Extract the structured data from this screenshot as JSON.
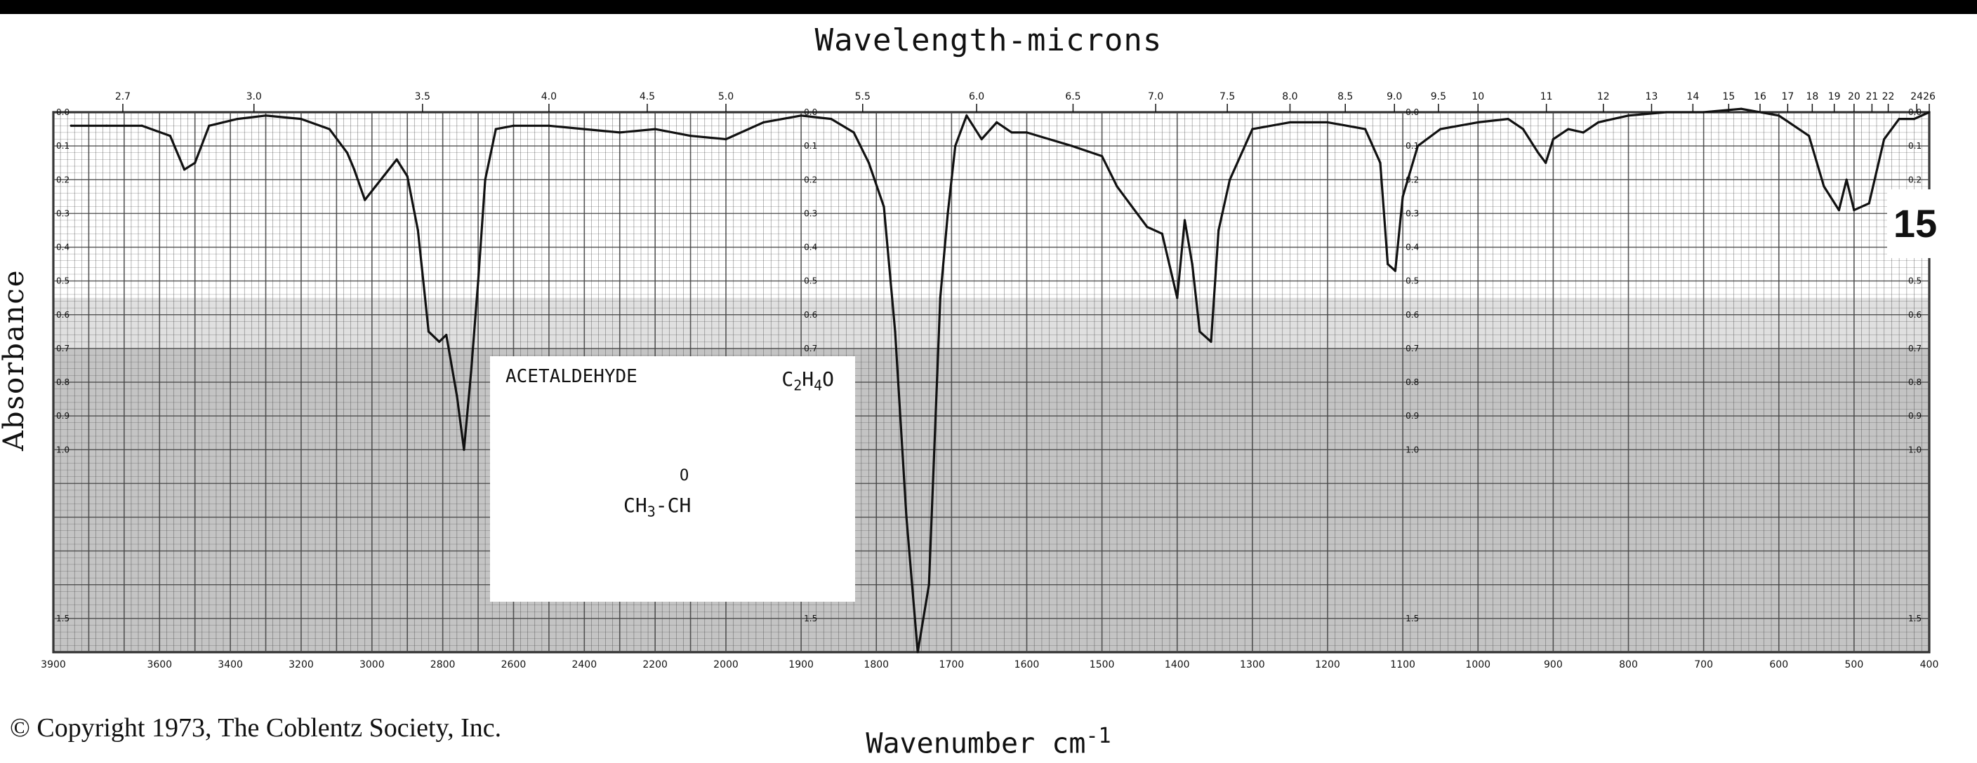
{
  "top_title": "Wavelength-microns",
  "y_label": "Absorbance",
  "bottom_title": "Wavenumber cm",
  "bottom_title_exponent": "-1",
  "copyright": "© Copyright 1973, The Coblentz Society, Inc.",
  "spectrum_number": "15",
  "compound": {
    "name": "ACETALDEHYDE",
    "formula": "C2H4O",
    "formula_parts": [
      "C",
      "2",
      "H",
      "4",
      "O"
    ],
    "structure_parts": [
      "CH",
      "3",
      "-CH"
    ],
    "structure_oxygen": "O"
  },
  "colors": {
    "ink": "#111111",
    "grid": "#444444",
    "dark_grid": "#222222",
    "paper": "#ffffff"
  },
  "chart_data": {
    "type": "line",
    "title": "",
    "xlabel": "Wavenumber cm-1",
    "ylabel": "Absorbance",
    "x_top_label": "Wavelength-microns",
    "xlim": [
      3900,
      400
    ],
    "ylim": [
      0,
      1.6
    ],
    "grid": true,
    "x_ticks": [
      3900,
      3600,
      3400,
      3200,
      3000,
      2800,
      2600,
      2400,
      2200,
      2000,
      1900,
      1800,
      1700,
      1600,
      1500,
      1400,
      1300,
      1200,
      1100,
      1000,
      900,
      800,
      700,
      600,
      500,
      400
    ],
    "x_tick_labels": [
      "3900",
      "3600",
      "3400",
      "3200",
      "3000",
      "2800",
      "2600",
      "2400",
      "2200",
      "2000",
      "1900",
      "1800",
      "1700",
      "1600",
      "1500",
      "1400",
      "1300",
      "1200",
      "1100",
      "1000",
      "900",
      "800",
      "700",
      "600",
      "500",
      "400"
    ],
    "top_ticks": [
      2.7,
      3.0,
      3.5,
      4.0,
      4.5,
      5.0,
      5.5,
      6.0,
      6.5,
      7.0,
      7.5,
      8.0,
      8.5,
      9.0,
      9.5,
      10,
      11,
      12,
      13,
      14,
      15,
      16,
      17,
      18,
      19,
      20,
      21,
      22,
      24,
      26
    ],
    "top_tick_labels": [
      "2.7",
      "3.0",
      "3.5",
      "4.0",
      "4.5",
      "5.0",
      "5.5",
      "6.0",
      "6.5",
      "7.0",
      "7.5",
      "8.0",
      "8.5",
      "9.0",
      "9.5",
      "10",
      "11",
      "12",
      "13",
      "14",
      "15",
      "16",
      "17",
      "18",
      "19",
      "20",
      "21",
      "22",
      "24",
      "26"
    ],
    "y_ticks": [
      0.0,
      0.1,
      0.2,
      0.3,
      0.4,
      0.5,
      0.6,
      0.7,
      0.8,
      0.9,
      1.0,
      1.5
    ],
    "y_tick_labels": [
      "0.0",
      "0.1",
      "0.2",
      "0.3",
      "0.4",
      "0.5",
      "0.6",
      "0.7",
      "0.8",
      "0.9",
      "1.0",
      "1.5"
    ],
    "series": [
      {
        "values": [
          [
            3850,
            0.04
          ],
          [
            3750,
            0.04
          ],
          [
            3650,
            0.04
          ],
          [
            3570,
            0.07
          ],
          [
            3530,
            0.17
          ],
          [
            3500,
            0.15
          ],
          [
            3460,
            0.04
          ],
          [
            3380,
            0.02
          ],
          [
            3300,
            0.01
          ],
          [
            3200,
            0.02
          ],
          [
            3120,
            0.05
          ],
          [
            3070,
            0.12
          ],
          [
            3050,
            0.17
          ],
          [
            3020,
            0.26
          ],
          [
            2990,
            0.22
          ],
          [
            2960,
            0.18
          ],
          [
            2930,
            0.14
          ],
          [
            2900,
            0.19
          ],
          [
            2870,
            0.35
          ],
          [
            2840,
            0.65
          ],
          [
            2810,
            0.68
          ],
          [
            2790,
            0.66
          ],
          [
            2760,
            0.84
          ],
          [
            2740,
            1.0
          ],
          [
            2720,
            0.77
          ],
          [
            2700,
            0.5
          ],
          [
            2680,
            0.2
          ],
          [
            2650,
            0.05
          ],
          [
            2600,
            0.04
          ],
          [
            2500,
            0.04
          ],
          [
            2400,
            0.05
          ],
          [
            2300,
            0.06
          ],
          [
            2200,
            0.05
          ],
          [
            2100,
            0.07
          ],
          [
            2000,
            0.08
          ],
          [
            1950,
            0.03
          ],
          [
            1900,
            0.01
          ],
          [
            1860,
            0.02
          ],
          [
            1830,
            0.06
          ],
          [
            1810,
            0.15
          ],
          [
            1790,
            0.28
          ],
          [
            1775,
            0.65
          ],
          [
            1760,
            1.2
          ],
          [
            1745,
            1.6
          ],
          [
            1730,
            1.4
          ],
          [
            1715,
            0.55
          ],
          [
            1705,
            0.3
          ],
          [
            1695,
            0.1
          ],
          [
            1680,
            0.01
          ],
          [
            1660,
            0.08
          ],
          [
            1640,
            0.03
          ],
          [
            1620,
            0.06
          ],
          [
            1600,
            0.06
          ],
          [
            1570,
            0.08
          ],
          [
            1540,
            0.1
          ],
          [
            1500,
            0.13
          ],
          [
            1480,
            0.22
          ],
          [
            1460,
            0.28
          ],
          [
            1440,
            0.34
          ],
          [
            1420,
            0.36
          ],
          [
            1400,
            0.55
          ],
          [
            1390,
            0.32
          ],
          [
            1380,
            0.45
          ],
          [
            1370,
            0.65
          ],
          [
            1355,
            0.68
          ],
          [
            1345,
            0.35
          ],
          [
            1330,
            0.2
          ],
          [
            1300,
            0.05
          ],
          [
            1250,
            0.03
          ],
          [
            1200,
            0.03
          ],
          [
            1150,
            0.05
          ],
          [
            1130,
            0.15
          ],
          [
            1120,
            0.45
          ],
          [
            1110,
            0.47
          ],
          [
            1100,
            0.25
          ],
          [
            1080,
            0.1
          ],
          [
            1050,
            0.05
          ],
          [
            1000,
            0.03
          ],
          [
            960,
            0.02
          ],
          [
            940,
            0.05
          ],
          [
            920,
            0.12
          ],
          [
            910,
            0.15
          ],
          [
            900,
            0.08
          ],
          [
            880,
            0.05
          ],
          [
            860,
            0.06
          ],
          [
            840,
            0.03
          ],
          [
            800,
            0.01
          ],
          [
            750,
            0.0
          ],
          [
            700,
            0.0
          ],
          [
            650,
            -0.01
          ],
          [
            600,
            0.01
          ],
          [
            560,
            0.07
          ],
          [
            540,
            0.22
          ],
          [
            520,
            0.29
          ],
          [
            510,
            0.2
          ],
          [
            500,
            0.29
          ],
          [
            480,
            0.27
          ],
          [
            460,
            0.08
          ],
          [
            440,
            0.02
          ],
          [
            420,
            0.02
          ],
          [
            400,
            0.0
          ]
        ]
      }
    ]
  }
}
